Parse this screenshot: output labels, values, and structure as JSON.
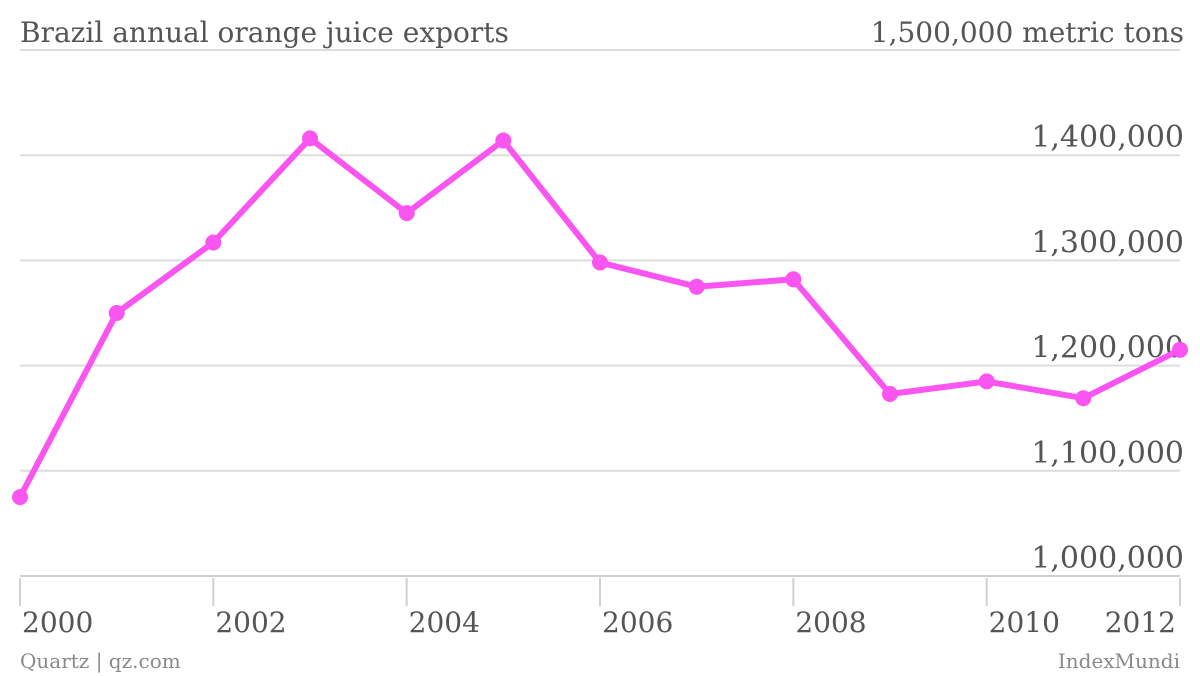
{
  "header": {
    "title": "Brazil annual orange juice exports",
    "unit_label": "1,500,000 metric tons"
  },
  "footer": {
    "source_left": "Quartz | qz.com",
    "source_right": "IndexMundi"
  },
  "chart_data": {
    "type": "line",
    "title": "Brazil annual orange juice exports",
    "unit": "metric tons",
    "x": [
      2000,
      2001,
      2002,
      2003,
      2004,
      2005,
      2006,
      2007,
      2008,
      2009,
      2010,
      2011,
      2012
    ],
    "series": [
      {
        "values": [
          1075000,
          1250000,
          1317000,
          1416000,
          1345000,
          1414000,
          1298000,
          1275000,
          1282000,
          1173000,
          1185000,
          1169000,
          1215000
        ]
      }
    ],
    "ylim": [
      1000000,
      1500000
    ],
    "y_ticks": [
      1000000,
      1100000,
      1200000,
      1300000,
      1400000,
      1500000
    ],
    "y_tick_labels": [
      "1,000,000",
      "1,100,000",
      "1,200,000",
      "1,300,000",
      "1,400,000",
      "1,500,000 metric tons"
    ],
    "x_tick_labels": [
      "2000",
      "2002",
      "2004",
      "2006",
      "2008",
      "2010",
      "2012"
    ],
    "xlim": [
      2000,
      2012
    ],
    "grid": true,
    "line_color": "#fa55f0",
    "point_color": "#fa55f0"
  }
}
